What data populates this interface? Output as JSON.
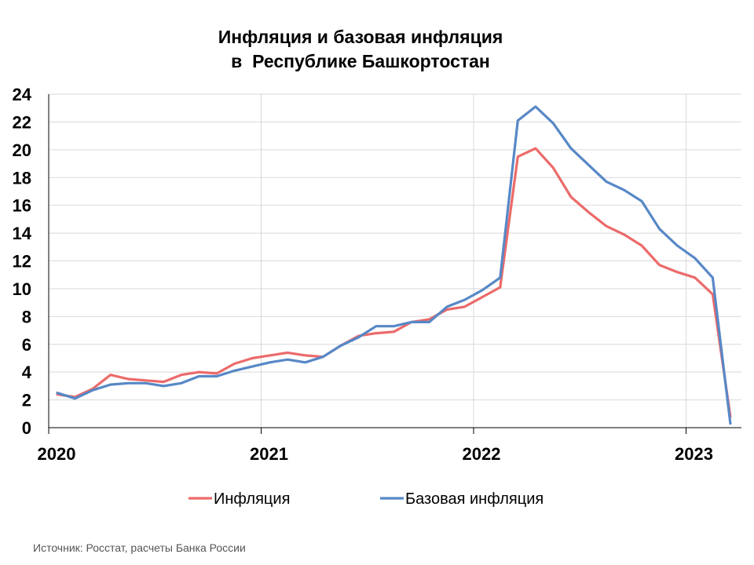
{
  "chart_data": {
    "type": "line",
    "title": "Инфляция и базовая инфляция",
    "subtitle": "в  Республике Башкортостан",
    "xlabel": "",
    "ylabel": "",
    "ylim": [
      0,
      24
    ],
    "yticks": [
      "0",
      "2",
      "4",
      "6",
      "8",
      "10",
      "12",
      "14",
      "16",
      "18",
      "20",
      "22",
      "24"
    ],
    "xticks": [
      "2020",
      "2021",
      "2022",
      "2023"
    ],
    "grid": true,
    "legend_position": "bottom",
    "x": [
      "2020-01",
      "2020-02",
      "2020-03",
      "2020-04",
      "2020-05",
      "2020-06",
      "2020-07",
      "2020-08",
      "2020-09",
      "2020-10",
      "2020-11",
      "2020-12",
      "2021-01",
      "2021-02",
      "2021-03",
      "2021-04",
      "2021-05",
      "2021-06",
      "2021-07",
      "2021-08",
      "2021-09",
      "2021-10",
      "2021-11",
      "2021-12",
      "2022-01",
      "2022-02",
      "2022-03",
      "2022-04",
      "2022-05",
      "2022-06",
      "2022-07",
      "2022-08",
      "2022-09",
      "2022-10",
      "2022-11",
      "2022-12",
      "2023-01",
      "2023-02",
      "2023-03"
    ],
    "series": [
      {
        "name": "Инфляция",
        "color": "#ec6a6a",
        "values": [
          2.4,
          2.2,
          2.8,
          3.8,
          3.5,
          3.4,
          3.3,
          3.8,
          4.0,
          3.9,
          4.6,
          5.0,
          5.2,
          5.4,
          5.2,
          5.1,
          5.9,
          6.6,
          6.8,
          6.9,
          7.6,
          7.8,
          8.5,
          8.7,
          9.4,
          10.1,
          19.5,
          20.1,
          18.7,
          16.6,
          15.5,
          14.5,
          13.9,
          13.1,
          11.7,
          11.2,
          10.8,
          9.6,
          0.8
        ]
      },
      {
        "name": "Базовая инфляция",
        "color": "#5788c6",
        "values": [
          2.5,
          2.1,
          2.7,
          3.1,
          3.2,
          3.2,
          3.0,
          3.2,
          3.7,
          3.7,
          4.1,
          4.4,
          4.7,
          4.9,
          4.7,
          5.1,
          5.9,
          6.5,
          7.3,
          7.3,
          7.6,
          7.6,
          8.7,
          9.2,
          9.9,
          10.8,
          22.1,
          23.1,
          21.9,
          20.1,
          18.9,
          17.7,
          17.1,
          16.3,
          14.3,
          13.1,
          12.2,
          10.8,
          0.3
        ]
      }
    ]
  },
  "source_text": "Источник: Росстат, расчеты Банка России"
}
